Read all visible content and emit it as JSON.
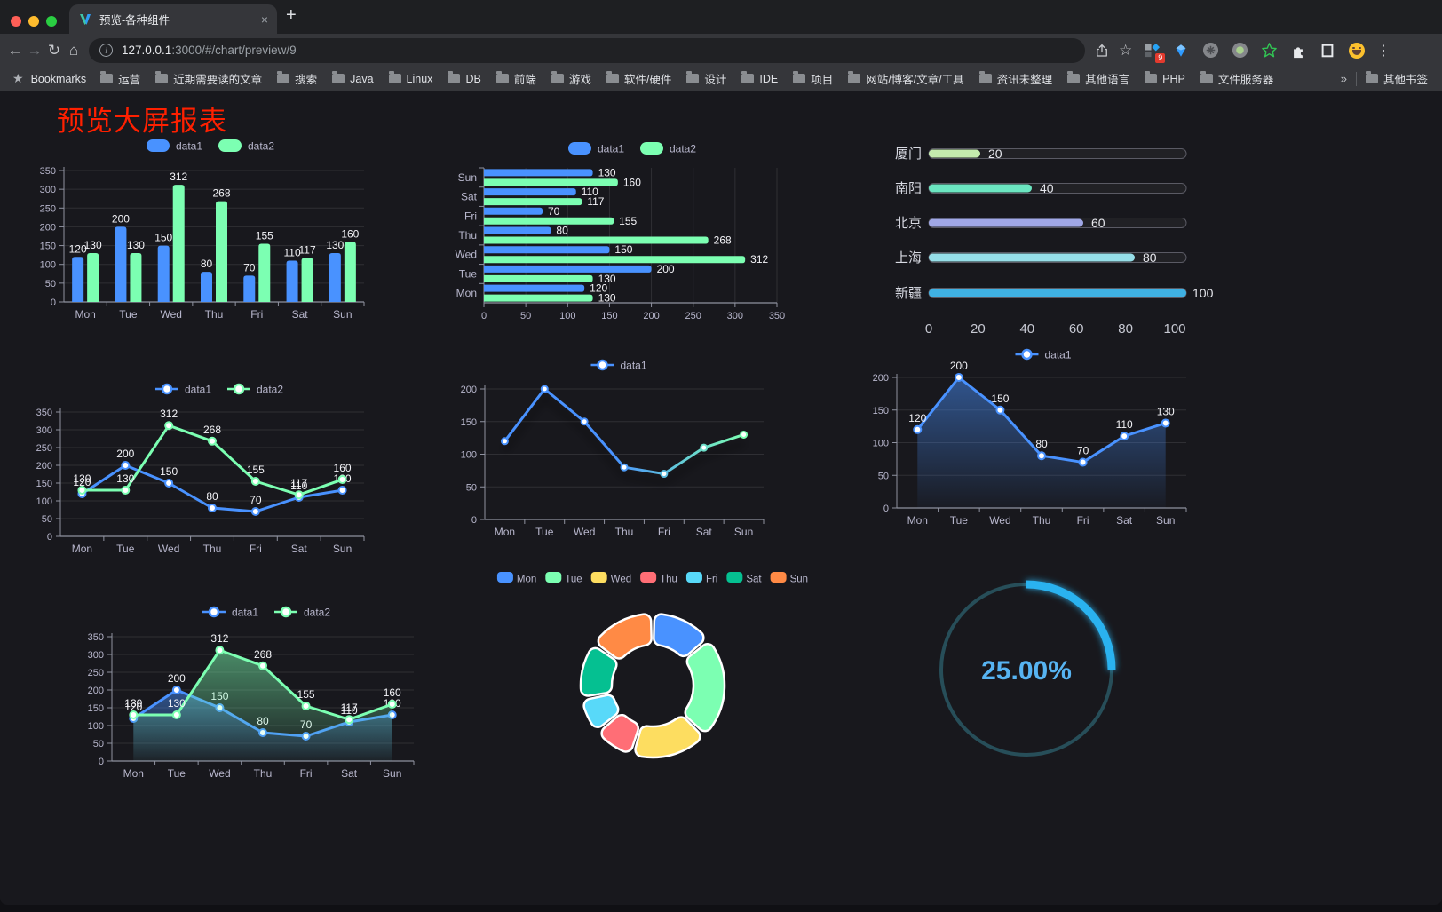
{
  "browser": {
    "tab_title": "预览-各种组件",
    "close_glyph": "×",
    "new_tab_glyph": "+",
    "url_host": "127.0.0.1",
    "url_rest": ":3000/#/chart/preview/9",
    "extension_badge": "9",
    "icons": {
      "back": "←",
      "forward": "→",
      "reload": "↻",
      "home": "⌂",
      "star": "☆",
      "bookmarks_star": "★",
      "menu": "⋮"
    },
    "bookmarks_label": "Bookmarks",
    "bookmarks": [
      "运营",
      "近期需要读的文章",
      "搜索",
      "Java",
      "Linux",
      "DB",
      "前端",
      "游戏",
      "软件/硬件",
      "设计",
      "IDE",
      "项目",
      "网站/博客/文章/工具",
      "资讯未整理",
      "其他语言",
      "PHP",
      "文件服务器"
    ],
    "bookmarks_overflow": "»",
    "other_bookmarks": "其他书签"
  },
  "page": {
    "title": "预览大屏报表",
    "title_color": "#ff2000",
    "background": "#18181d"
  },
  "chart_data": [
    {
      "id": "bar-grouped",
      "type": "bar",
      "legend_position": "top",
      "grid": true,
      "labels": true,
      "categories": [
        "Mon",
        "Tue",
        "Wed",
        "Thu",
        "Fri",
        "Sat",
        "Sun"
      ],
      "series": [
        {
          "name": "data1",
          "color": "#4992ff",
          "values": [
            120,
            200,
            150,
            80,
            70,
            110,
            130
          ]
        },
        {
          "name": "data2",
          "color": "#7cffb2",
          "values": [
            130,
            130,
            312,
            268,
            155,
            117,
            160
          ]
        }
      ],
      "ylim": [
        0,
        350
      ],
      "ytick_step": 50
    },
    {
      "id": "bar-horizontal",
      "type": "bar",
      "orientation": "horizontal",
      "legend_position": "top",
      "labels": true,
      "categories": [
        "Mon",
        "Tue",
        "Wed",
        "Thu",
        "Fri",
        "Sat",
        "Sun"
      ],
      "series": [
        {
          "name": "data1",
          "color": "#4992ff",
          "values": [
            120,
            200,
            150,
            80,
            70,
            110,
            130
          ]
        },
        {
          "name": "data2",
          "color": "#7cffb2",
          "values": [
            130,
            130,
            312,
            268,
            155,
            117,
            160
          ]
        }
      ],
      "xlim": [
        0,
        350
      ],
      "xtick_step": 50
    },
    {
      "id": "city-progress",
      "type": "bar",
      "orientation": "horizontal",
      "subtype": "progress",
      "items": [
        {
          "label": "厦门",
          "value": 20,
          "color": "#c4ebad"
        },
        {
          "label": "南阳",
          "value": 40,
          "color": "#6be6c1"
        },
        {
          "label": "北京",
          "value": 60,
          "color": "#a0a7e6"
        },
        {
          "label": "上海",
          "value": 80,
          "color": "#96dee8"
        },
        {
          "label": "新疆",
          "value": 100,
          "color": "#3fb1e3"
        }
      ],
      "xlim": [
        0,
        100
      ],
      "xticks": [
        0,
        20,
        40,
        60,
        80,
        100
      ]
    },
    {
      "id": "line-two",
      "type": "line",
      "legend_position": "top",
      "labels": true,
      "categories": [
        "Mon",
        "Tue",
        "Wed",
        "Thu",
        "Fri",
        "Sat",
        "Sun"
      ],
      "series": [
        {
          "name": "data1",
          "color": "#4992ff",
          "values": [
            120,
            200,
            150,
            80,
            70,
            110,
            130
          ]
        },
        {
          "name": "data2",
          "color": "#7cffb2",
          "values": [
            130,
            130,
            312,
            268,
            155,
            117,
            160
          ]
        }
      ],
      "ylim": [
        0,
        350
      ],
      "ytick_step": 50
    },
    {
      "id": "line-gradient",
      "type": "line",
      "legend_position": "top",
      "labels": false,
      "categories": [
        "Mon",
        "Tue",
        "Wed",
        "Thu",
        "Fri",
        "Sat",
        "Sun"
      ],
      "series": [
        {
          "name": "data1",
          "gradient": [
            "#4992ff",
            "#7cffb2"
          ],
          "color": "#4992ff",
          "values": [
            120,
            200,
            150,
            80,
            70,
            110,
            130
          ]
        }
      ],
      "ylim": [
        0,
        200
      ],
      "ytick_step": 50
    },
    {
      "id": "area-one",
      "type": "area",
      "legend_position": "top",
      "labels": true,
      "categories": [
        "Mon",
        "Tue",
        "Wed",
        "Thu",
        "Fri",
        "Sat",
        "Sun"
      ],
      "series": [
        {
          "name": "data1",
          "color": "#4992ff",
          "values": [
            120,
            200,
            150,
            80,
            70,
            110,
            130
          ]
        }
      ],
      "ylim": [
        0,
        200
      ],
      "ytick_step": 50
    },
    {
      "id": "line-two-area",
      "type": "area",
      "legend_position": "top",
      "labels": true,
      "categories": [
        "Mon",
        "Tue",
        "Wed",
        "Thu",
        "Fri",
        "Sat",
        "Sun"
      ],
      "series": [
        {
          "name": "data1",
          "color": "#4992ff",
          "values": [
            120,
            200,
            150,
            80,
            70,
            110,
            130
          ]
        },
        {
          "name": "data2",
          "color": "#7cffb2",
          "values": [
            130,
            130,
            312,
            268,
            155,
            117,
            160
          ]
        }
      ],
      "ylim": [
        0,
        350
      ],
      "ytick_step": 50
    },
    {
      "id": "donut",
      "type": "pie",
      "legend_position": "top",
      "items": [
        {
          "label": "Mon",
          "value": 120,
          "color": "#4992ff"
        },
        {
          "label": "Tue",
          "value": 200,
          "color": "#7cffb2"
        },
        {
          "label": "Wed",
          "value": 150,
          "color": "#fddd60"
        },
        {
          "label": "Thu",
          "value": 80,
          "color": "#ff6e76"
        },
        {
          "label": "Fri",
          "value": 70,
          "color": "#58d9f9"
        },
        {
          "label": "Sat",
          "value": 110,
          "color": "#05c091"
        },
        {
          "label": "Sun",
          "value": 130,
          "color": "#ff8a45"
        }
      ]
    },
    {
      "id": "gauge",
      "type": "gauge",
      "value": 25,
      "label": "25.00%",
      "color": "#29b2ef",
      "track_color": "#274e59",
      "text_color": "#57b4f2"
    }
  ]
}
